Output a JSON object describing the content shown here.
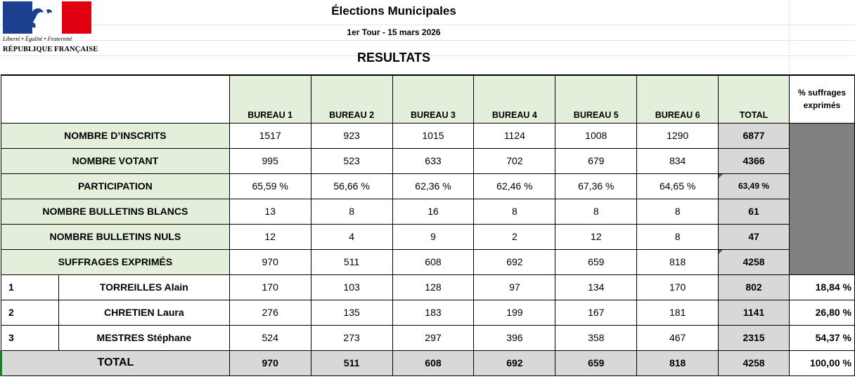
{
  "logo": {
    "motto": "Liberté • Égalité • Fraternité",
    "republic": "RÉPUBLIQUE FRANÇAISE"
  },
  "header": {
    "title": "Élections Municipales",
    "subtitle": "1er Tour - 15 mars 2026",
    "section": "RESULTATS"
  },
  "columns": [
    "BUREAU 1",
    "BUREAU 2",
    "BUREAU 3",
    "BUREAU 4",
    "BUREAU 5",
    "BUREAU 6",
    "TOTAL",
    "% suffrages exprimés"
  ],
  "stats": [
    {
      "label": "NOMBRE D’INSCRITS",
      "values": [
        "1517",
        "923",
        "1015",
        "1124",
        "1008",
        "1290"
      ],
      "total": "6877"
    },
    {
      "label": "NOMBRE VOTANT",
      "values": [
        "995",
        "523",
        "633",
        "702",
        "679",
        "834"
      ],
      "total": "4366"
    },
    {
      "label": "PARTICIPATION",
      "values": [
        "65,59 %",
        "56,66 %",
        "62,36 %",
        "62,46 %",
        "67,36 %",
        "64,65 %"
      ],
      "total": "63,49 %"
    },
    {
      "label": "NOMBRE BULLETINS BLANCS",
      "values": [
        "13",
        "8",
        "16",
        "8",
        "8",
        "8"
      ],
      "total": "61"
    },
    {
      "label": "NOMBRE BULLETINS NULS",
      "values": [
        "12",
        "4",
        "9",
        "2",
        "12",
        "8"
      ],
      "total": "47"
    },
    {
      "label": "SUFFRAGES EXPRIMÉS",
      "values": [
        "970",
        "511",
        "608",
        "692",
        "659",
        "818"
      ],
      "total": "4258"
    }
  ],
  "candidates": [
    {
      "num": "1",
      "name": "TORREILLES Alain",
      "values": [
        "170",
        "103",
        "128",
        "97",
        "134",
        "170"
      ],
      "total": "802",
      "pct": "18,84 %"
    },
    {
      "num": "2",
      "name": "CHRETIEN Laura",
      "values": [
        "276",
        "135",
        "183",
        "199",
        "167",
        "181"
      ],
      "total": "1141",
      "pct": "26,80 %"
    },
    {
      "num": "3",
      "name": "MESTRES Stéphane",
      "values": [
        "524",
        "273",
        "297",
        "396",
        "358",
        "467"
      ],
      "total": "2315",
      "pct": "54,37 %"
    }
  ],
  "totals": {
    "label": "TOTAL",
    "values": [
      "970",
      "511",
      "608",
      "692",
      "659",
      "818"
    ],
    "total": "4258",
    "pct": "100,00 %"
  },
  "colors": {
    "green": "#e3eedb",
    "gray": "#d8d8d8",
    "dark": "#808080",
    "flag_blue": "#1d3f8f",
    "flag_red": "#e1000f"
  }
}
